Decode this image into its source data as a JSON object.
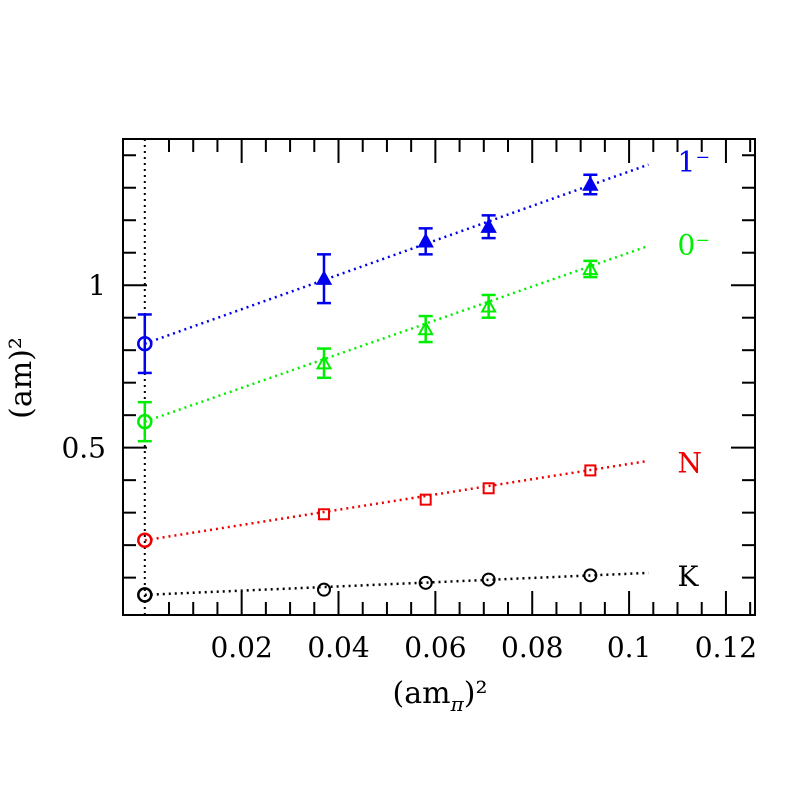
{
  "chart_data": {
    "type": "scatter",
    "xlabel": "(am",
    "xlabel_sub": "π",
    "xlabel_tail": ")²",
    "ylabel": "(am)²",
    "xlim": [
      -0.0045,
      0.126
    ],
    "ylim": [
      -0.015,
      1.45
    ],
    "grid": false,
    "x_ticks": [
      0.02,
      0.04,
      0.06,
      0.08,
      0.1,
      0.12
    ],
    "x_tick_labels": [
      "0.02",
      "0.04",
      "0.06",
      "0.08",
      "0.1",
      "0.12"
    ],
    "y_ticks": [
      0.5,
      1
    ],
    "y_tick_labels": [
      "0.5",
      "1"
    ],
    "chiral_limit_x": 0.0,
    "series": [
      {
        "name": "1⁻",
        "label_base": "1",
        "label_sup": "⁻",
        "color": "#0000ee",
        "marker": "triangle-filled",
        "points": [
          {
            "x": 0.037,
            "y": 1.02,
            "err": 0.075
          },
          {
            "x": 0.058,
            "y": 1.135,
            "err": 0.04
          },
          {
            "x": 0.071,
            "y": 1.18,
            "err": 0.035
          },
          {
            "x": 0.092,
            "y": 1.31,
            "err": 0.03
          }
        ],
        "extrapolated": {
          "x": 0.0,
          "y": 0.82,
          "err": 0.09
        },
        "fit": {
          "intercept": 0.82,
          "slope": 5.3,
          "x_end": 0.104
        },
        "label_pos": [
          0.11,
          1.38
        ]
      },
      {
        "name": "0⁻",
        "label_base": "0",
        "label_sup": "⁻",
        "color": "#00ee00",
        "marker": "triangle-open",
        "points": [
          {
            "x": 0.037,
            "y": 0.76,
            "err": 0.045
          },
          {
            "x": 0.058,
            "y": 0.865,
            "err": 0.04
          },
          {
            "x": 0.071,
            "y": 0.935,
            "err": 0.035
          },
          {
            "x": 0.092,
            "y": 1.05,
            "err": 0.025
          }
        ],
        "extrapolated": {
          "x": 0.0,
          "y": 0.58,
          "err": 0.06
        },
        "fit": {
          "intercept": 0.58,
          "slope": 5.2,
          "x_end": 0.104
        },
        "label_pos": [
          0.11,
          1.125
        ]
      },
      {
        "name": "N",
        "label_base": "N",
        "label_sup": "",
        "color": "#ee0000",
        "marker": "square-open",
        "points": [
          {
            "x": 0.037,
            "y": 0.295,
            "err": 0.0
          },
          {
            "x": 0.058,
            "y": 0.34,
            "err": 0.0
          },
          {
            "x": 0.071,
            "y": 0.375,
            "err": 0.0
          },
          {
            "x": 0.092,
            "y": 0.43,
            "err": 0.0
          }
        ],
        "extrapolated": {
          "x": 0.0,
          "y": 0.215,
          "err": 0.0
        },
        "fit": {
          "intercept": 0.215,
          "slope": 2.35,
          "x_end": 0.104
        },
        "label_pos": [
          0.11,
          0.455
        ]
      },
      {
        "name": "K",
        "label_base": "K",
        "label_sup": "",
        "color": "#000000",
        "marker": "circle-open",
        "points": [
          {
            "x": 0.037,
            "y": 0.063,
            "err": 0.0
          },
          {
            "x": 0.058,
            "y": 0.084,
            "err": 0.0
          },
          {
            "x": 0.071,
            "y": 0.094,
            "err": 0.0
          },
          {
            "x": 0.092,
            "y": 0.107,
            "err": 0.0
          }
        ],
        "extrapolated": {
          "x": 0.0,
          "y": 0.047,
          "err": 0.0
        },
        "fit": {
          "intercept": 0.047,
          "slope": 0.65,
          "x_end": 0.104
        },
        "label_pos": [
          0.11,
          0.105
        ]
      }
    ]
  }
}
